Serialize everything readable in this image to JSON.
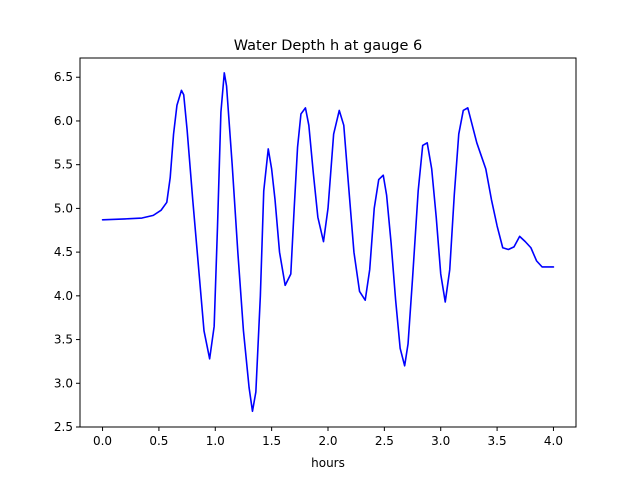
{
  "chart_data": {
    "type": "line",
    "title": "Water Depth h at gauge 6",
    "xlabel": "hours",
    "ylabel": "",
    "xlim": [
      -0.2,
      4.2
    ],
    "ylim": [
      2.5,
      6.72
    ],
    "xticks": [
      0.0,
      0.5,
      1.0,
      1.5,
      2.0,
      2.5,
      3.0,
      3.5,
      4.0
    ],
    "xtick_labels": [
      "0.0",
      "0.5",
      "1.0",
      "1.5",
      "2.0",
      "2.5",
      "3.0",
      "3.5",
      "4.0"
    ],
    "yticks": [
      2.5,
      3.0,
      3.5,
      4.0,
      4.5,
      5.0,
      5.5,
      6.0,
      6.5
    ],
    "ytick_labels": [
      "2.5",
      "3.0",
      "3.5",
      "4.0",
      "4.5",
      "5.0",
      "5.5",
      "6.0",
      "6.5"
    ],
    "grid": false,
    "series": [
      {
        "color": "#0000ff",
        "x": [
          0.0,
          0.2,
          0.35,
          0.45,
          0.52,
          0.57,
          0.6,
          0.63,
          0.66,
          0.7,
          0.72,
          0.75,
          0.8,
          0.86,
          0.9,
          0.95,
          0.99,
          1.02,
          1.05,
          1.08,
          1.1,
          1.15,
          1.2,
          1.25,
          1.3,
          1.33,
          1.36,
          1.4,
          1.43,
          1.47,
          1.5,
          1.53,
          1.57,
          1.62,
          1.67,
          1.7,
          1.73,
          1.76,
          1.8,
          1.83,
          1.87,
          1.91,
          1.96,
          2.0,
          2.05,
          2.1,
          2.14,
          2.18,
          2.23,
          2.28,
          2.33,
          2.37,
          2.41,
          2.45,
          2.49,
          2.52,
          2.56,
          2.6,
          2.64,
          2.68,
          2.71,
          2.75,
          2.8,
          2.84,
          2.88,
          2.92,
          2.96,
          3.0,
          3.04,
          3.08,
          3.12,
          3.16,
          3.2,
          3.24,
          3.28,
          3.32,
          3.36,
          3.4,
          3.45,
          3.5,
          3.55,
          3.6,
          3.65,
          3.7,
          3.75,
          3.8,
          3.85,
          3.9,
          3.95,
          4.0
        ],
        "y": [
          4.87,
          4.88,
          4.89,
          4.92,
          4.98,
          5.07,
          5.35,
          5.85,
          6.18,
          6.35,
          6.3,
          5.9,
          5.1,
          4.2,
          3.6,
          3.28,
          3.65,
          4.8,
          6.1,
          6.55,
          6.4,
          5.5,
          4.5,
          3.6,
          2.95,
          2.68,
          2.9,
          4.0,
          5.2,
          5.68,
          5.45,
          5.1,
          4.5,
          4.12,
          4.25,
          5.0,
          5.7,
          6.08,
          6.15,
          5.95,
          5.4,
          4.9,
          4.62,
          5.0,
          5.85,
          6.12,
          5.95,
          5.3,
          4.5,
          4.05,
          3.95,
          4.3,
          5.0,
          5.33,
          5.38,
          5.15,
          4.6,
          3.95,
          3.4,
          3.2,
          3.45,
          4.2,
          5.2,
          5.72,
          5.75,
          5.45,
          4.9,
          4.25,
          3.93,
          4.3,
          5.15,
          5.85,
          6.12,
          6.15,
          5.95,
          5.75,
          5.6,
          5.45,
          5.1,
          4.8,
          4.55,
          4.53,
          4.56,
          4.68,
          4.62,
          4.55,
          4.4,
          4.33,
          4.33,
          4.33
        ]
      }
    ]
  }
}
